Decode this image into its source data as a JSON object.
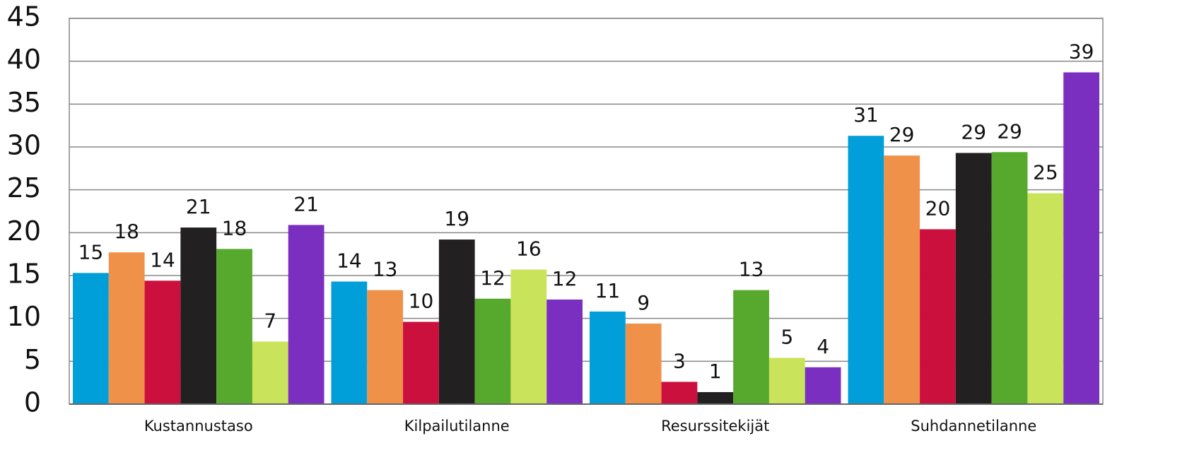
{
  "chart_data": {
    "type": "bar",
    "categories": [
      "Kustannustaso",
      "Kilpailutilanne",
      "Resurssitekijät",
      "Suhdannetilanne"
    ],
    "series": [
      {
        "color": "#009fda",
        "values": [
          15.3,
          14.3,
          10.8,
          31.3
        ],
        "value_labels": [
          "15",
          "14",
          "11",
          "31"
        ]
      },
      {
        "color": "#f0914a",
        "values": [
          17.7,
          13.3,
          9.4,
          29.0
        ],
        "value_labels": [
          "18",
          "13",
          "9",
          "29"
        ]
      },
      {
        "color": "#cc103d",
        "values": [
          14.4,
          9.6,
          2.6,
          20.4
        ],
        "value_labels": [
          "14",
          "10",
          "3",
          "20"
        ]
      },
      {
        "color": "#222020",
        "values": [
          20.6,
          19.2,
          1.4,
          29.3
        ],
        "value_labels": [
          "21",
          "19",
          "1",
          "29"
        ]
      },
      {
        "color": "#57a92d",
        "values": [
          18.1,
          12.3,
          13.3,
          29.4
        ],
        "value_labels": [
          "18",
          "12",
          "13",
          "29"
        ]
      },
      {
        "color": "#c9e45a",
        "values": [
          7.3,
          15.7,
          5.4,
          24.6
        ],
        "value_labels": [
          "7",
          "16",
          "5",
          "25"
        ]
      },
      {
        "color": "#7b2fc1",
        "values": [
          20.9,
          12.2,
          4.3,
          38.7
        ],
        "value_labels": [
          "21",
          "12",
          "4",
          "39"
        ]
      }
    ],
    "ylim": [
      0,
      45
    ],
    "yticks": [
      0,
      5,
      10,
      15,
      20,
      25,
      30,
      35,
      40,
      45
    ],
    "grid": true
  }
}
